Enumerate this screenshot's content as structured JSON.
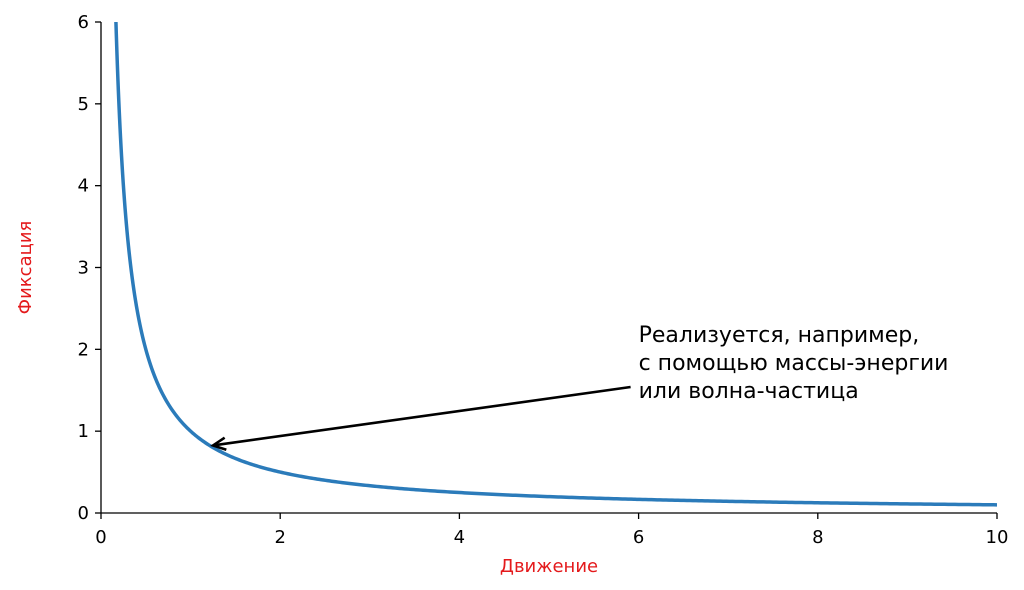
{
  "chart_data": {
    "type": "line",
    "function": "y = 1 / x",
    "xlabel": "Движение",
    "ylabel": "Фиксация",
    "xlim": [
      0,
      10
    ],
    "ylim": [
      0,
      6
    ],
    "xticks": [
      0,
      2,
      4,
      6,
      8,
      10
    ],
    "yticks": [
      0,
      1,
      2,
      3,
      4,
      5,
      6
    ],
    "grid": false,
    "series": [
      {
        "x": [
          0.1667,
          0.2,
          0.25,
          0.3,
          0.4,
          0.5,
          0.6,
          0.8,
          1,
          1.2,
          1.5,
          2,
          3,
          4,
          5,
          6,
          7,
          8,
          9,
          10
        ],
        "y": [
          6,
          5,
          4,
          3.333,
          2.5,
          2,
          1.667,
          1.25,
          1,
          0.833,
          0.667,
          0.5,
          0.333,
          0.25,
          0.2,
          0.167,
          0.143,
          0.125,
          0.111,
          0.1
        ]
      }
    ],
    "annotations": [
      {
        "lines": [
          "Реализуется, например,",
          "с помощью массы-энергии",
          "или волна-частица"
        ],
        "point": {
          "x": 1.25,
          "y": 0.85
        },
        "text_anchor": {
          "x": 6.0,
          "y": 1.6
        }
      }
    ],
    "colors": {
      "curve": "#2b7bba",
      "axis_titles": "#e41a1c",
      "text": "#000000"
    }
  }
}
